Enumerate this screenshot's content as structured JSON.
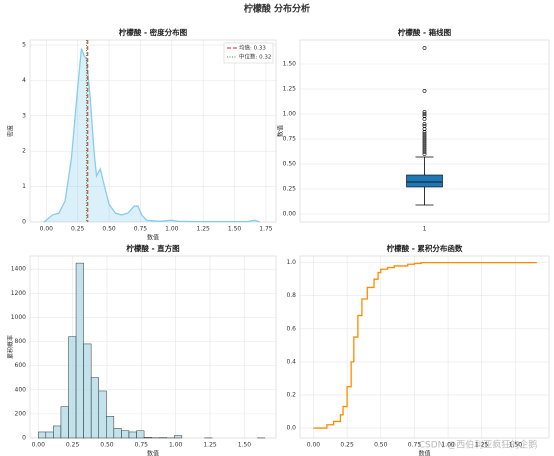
{
  "title": "柠檬酸 分布分析",
  "watermark": "CSDN @西伯利亚疯狂的企鹅",
  "chart_data": [
    {
      "type": "density",
      "title": "柠檬酸 - 密度分布图",
      "xlabel": "数值",
      "ylabel": "密度",
      "color": "#87ceeb",
      "grid": true,
      "x": [
        -0.02,
        0.0,
        0.05,
        0.1,
        0.15,
        0.2,
        0.25,
        0.28,
        0.3,
        0.32,
        0.35,
        0.38,
        0.4,
        0.43,
        0.45,
        0.5,
        0.55,
        0.6,
        0.65,
        0.7,
        0.73,
        0.76,
        0.8,
        0.9,
        1.0,
        1.05,
        1.2,
        1.6,
        1.66,
        1.7
      ],
      "values": [
        0.0,
        0.05,
        0.2,
        0.25,
        0.6,
        1.8,
        3.8,
        4.9,
        4.7,
        4.6,
        3.5,
        2.0,
        1.3,
        1.5,
        1.2,
        0.5,
        0.25,
        0.2,
        0.25,
        0.45,
        0.45,
        0.2,
        0.05,
        0.02,
        0.05,
        0.02,
        0.01,
        0.01,
        0.05,
        0.0
      ],
      "reference_lines": [
        {
          "name": "均值: 0.33",
          "value": 0.33,
          "color": "#d62728",
          "dash": "4,2"
        },
        {
          "name": "中位数: 0.32",
          "value": 0.32,
          "color": "#2ca02c",
          "dash": "1,1.5"
        }
      ],
      "xlim": [
        -0.13,
        1.83
      ],
      "ylim": [
        0,
        5.14
      ],
      "xticks": [
        {
          "value": 0,
          "label": "0.00"
        },
        {
          "value": 0.25,
          "label": "0.25"
        },
        {
          "value": 0.5,
          "label": "0.50"
        },
        {
          "value": 0.75,
          "label": "0.75"
        },
        {
          "value": 1,
          "label": "1.00"
        },
        {
          "value": 1.25,
          "label": "1.25"
        },
        {
          "value": 1.5,
          "label": "1.50"
        },
        {
          "value": 1.75,
          "label": "1.75"
        }
      ],
      "yticks": [
        0,
        1,
        2,
        3,
        4,
        5
      ]
    },
    {
      "type": "box",
      "title": "柠檬酸 - 箱线图",
      "ylabel": "数值",
      "color": "#1f77b4",
      "grid": true,
      "categories": [
        "1"
      ],
      "boxes": [
        {
          "whislo": 0.09,
          "q1": 0.27,
          "med": 0.32,
          "q3": 0.39,
          "whishi": 0.57,
          "fliers": [
            0.6,
            0.62,
            0.64,
            0.66,
            0.68,
            0.7,
            0.72,
            0.74,
            0.76,
            0.78,
            0.8,
            0.82,
            0.85,
            0.88,
            0.9,
            0.95,
            0.98,
            1.0,
            1.02,
            1.23,
            1.66
          ]
        }
      ],
      "ylim": [
        -0.08,
        1.74
      ],
      "yticks": [
        {
          "value": 0,
          "label": "0.00"
        },
        {
          "value": 0.25,
          "label": "0.25"
        },
        {
          "value": 0.5,
          "label": "0.50"
        },
        {
          "value": 0.75,
          "label": "0.75"
        },
        {
          "value": 1,
          "label": "1.00"
        },
        {
          "value": 1.25,
          "label": "1.25"
        },
        {
          "value": 1.5,
          "label": "1.50"
        }
      ]
    },
    {
      "type": "histogram",
      "title": "柠檬酸 - 直方图",
      "xlabel": "数值",
      "ylabel": "累积概率",
      "color": "#add8e6",
      "grid": true,
      "bins": [
        0,
        0.055,
        0.11,
        0.165,
        0.22,
        0.275,
        0.33,
        0.385,
        0.44,
        0.495,
        0.55,
        0.605,
        0.66,
        0.715,
        0.77,
        0.825,
        0.88,
        0.935,
        0.99,
        1.045,
        1.1,
        1.155,
        1.21,
        1.265,
        1.32,
        1.375,
        1.43,
        1.485,
        1.54,
        1.595,
        1.65
      ],
      "values": [
        50,
        50,
        100,
        260,
        840,
        1450,
        780,
        500,
        390,
        180,
        80,
        60,
        50,
        60,
        5,
        2,
        3,
        1,
        20,
        0,
        0,
        0,
        1,
        0,
        0,
        0,
        0,
        0,
        0,
        1
      ],
      "xlim": [
        -0.06,
        1.73
      ],
      "ylim": [
        0,
        1509
      ],
      "xticks": [
        {
          "value": 0,
          "label": "0.00"
        },
        {
          "value": 0.25,
          "label": "0.25"
        },
        {
          "value": 0.5,
          "label": "0.50"
        },
        {
          "value": 0.75,
          "label": "0.75"
        },
        {
          "value": 1,
          "label": "1.00"
        },
        {
          "value": 1.25,
          "label": "1.25"
        },
        {
          "value": 1.5,
          "label": "1.50"
        }
      ],
      "yticks": [
        0,
        200,
        400,
        600,
        800,
        1000,
        1200,
        1400
      ]
    },
    {
      "type": "step",
      "title": "柠檬酸 - 累积分布函数",
      "xlabel": "数值",
      "color": "#ff8c00",
      "grid": true,
      "x": [
        0,
        0.1,
        0.15,
        0.2,
        0.22,
        0.25,
        0.28,
        0.3,
        0.33,
        0.36,
        0.4,
        0.45,
        0.48,
        0.5,
        0.55,
        0.6,
        0.7,
        0.75,
        0.8,
        1.0,
        1.66
      ],
      "values": [
        0.0,
        0.02,
        0.04,
        0.08,
        0.13,
        0.25,
        0.4,
        0.55,
        0.68,
        0.78,
        0.85,
        0.9,
        0.94,
        0.96,
        0.97,
        0.98,
        0.99,
        0.995,
        1.0,
        1.0,
        1.0
      ],
      "xlim": [
        -0.1,
        1.75
      ],
      "ylim": [
        -0.06,
        1.04
      ],
      "xticks": [
        {
          "value": 0,
          "label": "0.00"
        },
        {
          "value": 0.25,
          "label": "0.25"
        },
        {
          "value": 0.5,
          "label": "0.50"
        },
        {
          "value": 0.75,
          "label": "0.75"
        },
        {
          "value": 1,
          "label": "1.00"
        },
        {
          "value": 1.25,
          "label": "1.25"
        },
        {
          "value": 1.5,
          "label": "1.50"
        }
      ],
      "yticks": [
        {
          "value": 0,
          "label": "0.0"
        },
        {
          "value": 0.2,
          "label": "0.2"
        },
        {
          "value": 0.4,
          "label": "0.4"
        },
        {
          "value": 0.6,
          "label": "0.6"
        },
        {
          "value": 0.8,
          "label": "0.8"
        },
        {
          "value": 1,
          "label": "1.0"
        }
      ]
    }
  ]
}
